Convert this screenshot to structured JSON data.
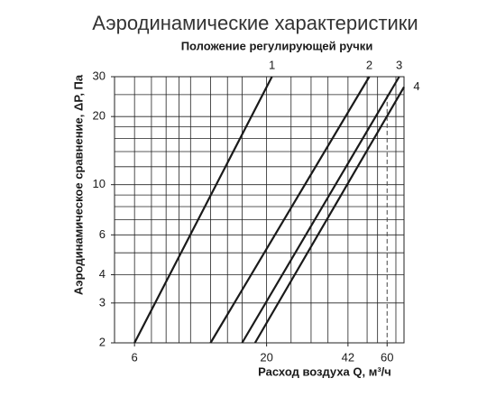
{
  "chart_data": {
    "type": "line",
    "title": "Аэродинамические характеристики",
    "subtitle": "Положение регулирующей ручки",
    "x_label": "Расход воздуха Q, м³/ч",
    "y_label": "Аэродинамическое сравнение, ΔP, Па",
    "log_x": true,
    "log_y": true,
    "xlim": [
      5,
      70
    ],
    "ylim": [
      2,
      30
    ],
    "xticks": [
      6,
      20,
      42,
      60
    ],
    "yticks": [
      2,
      3,
      4,
      6,
      10,
      20,
      30
    ],
    "xgrid": [
      6,
      7,
      8,
      9,
      10,
      12,
      14,
      16,
      20,
      25,
      30,
      35,
      42,
      50,
      55,
      65
    ],
    "ygrid": [
      3,
      4,
      5,
      6,
      7,
      8,
      9,
      10,
      12,
      14,
      16,
      18,
      20,
      25
    ],
    "reference_line_x": 60,
    "color": "#1a1a1a",
    "series": [
      {
        "name": "1",
        "x": [
          6,
          21
        ],
        "values": [
          2,
          30
        ]
      },
      {
        "name": "2",
        "x": [
          12,
          51
        ],
        "values": [
          2,
          30
        ]
      },
      {
        "name": "3",
        "x": [
          16,
          67
        ],
        "values": [
          2,
          30
        ]
      },
      {
        "name": "4",
        "x": [
          18,
          70
        ],
        "values": [
          2,
          27
        ]
      }
    ]
  }
}
